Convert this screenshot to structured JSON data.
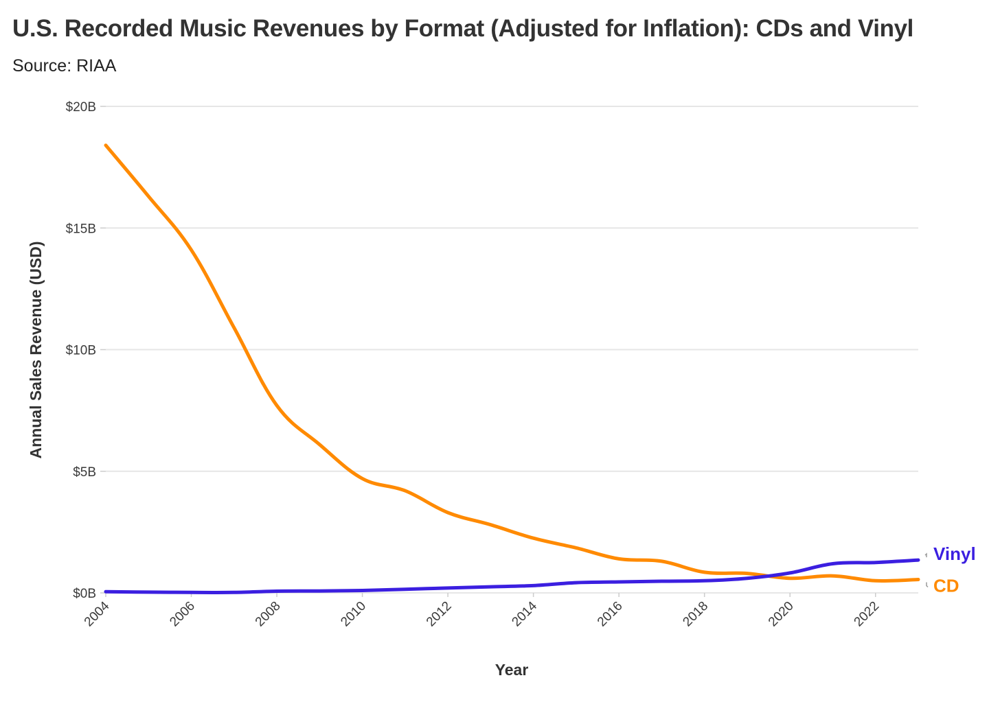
{
  "title": "U.S. Recorded Music Revenues by Format (Adjusted for Inflation): CDs and Vinyl",
  "subtitle": "Source: RIAA",
  "chart_data": {
    "type": "line",
    "title": "U.S. Recorded Music Revenues by Format (Adjusted for Inflation): CDs and Vinyl",
    "subtitle": "Source: RIAA",
    "xlabel": "Year",
    "ylabel": "Annual Sales Revenue (USD)",
    "xlim": [
      2004,
      2023
    ],
    "ylim": [
      0,
      20
    ],
    "y_unit": "billions USD",
    "x_ticks": [
      2004,
      2006,
      2008,
      2010,
      2012,
      2014,
      2016,
      2018,
      2020,
      2022
    ],
    "y_ticks": [
      {
        "value": 0,
        "label": "$0B"
      },
      {
        "value": 5,
        "label": "$5B"
      },
      {
        "value": 10,
        "label": "$10B"
      },
      {
        "value": 15,
        "label": "$15B"
      },
      {
        "value": 20,
        "label": "$20B"
      }
    ],
    "grid": "horizontal",
    "legend": "direct labels at right end of lines",
    "x": [
      2004,
      2005,
      2006,
      2007,
      2008,
      2009,
      2010,
      2011,
      2012,
      2013,
      2014,
      2015,
      2016,
      2017,
      2018,
      2019,
      2020,
      2021,
      2022,
      2023
    ],
    "series": [
      {
        "name": "CD",
        "color": "#ff8a00",
        "values": [
          18.4,
          16.3,
          14.1,
          10.9,
          7.7,
          6.1,
          4.7,
          4.2,
          3.3,
          2.8,
          2.25,
          1.85,
          1.4,
          1.3,
          0.85,
          0.8,
          0.6,
          0.7,
          0.5,
          0.55
        ]
      },
      {
        "name": "Vinyl",
        "color": "#3b1fe0",
        "values": [
          0.05,
          0.03,
          0.02,
          0.02,
          0.07,
          0.08,
          0.1,
          0.15,
          0.2,
          0.25,
          0.3,
          0.42,
          0.45,
          0.48,
          0.5,
          0.6,
          0.82,
          1.2,
          1.25,
          1.35
        ]
      }
    ]
  }
}
